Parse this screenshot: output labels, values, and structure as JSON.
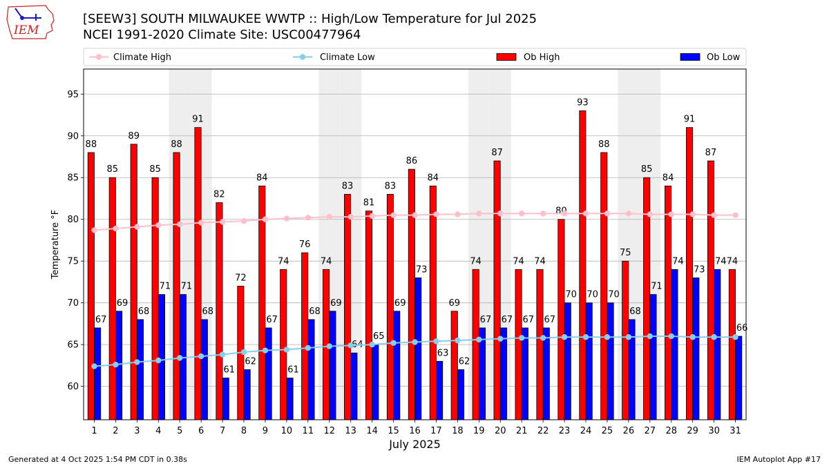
{
  "header": {
    "title_line1": "[SEEW3] SOUTH MILWAUKEE WWTP :: High/Low Temperature for Jul 2025",
    "title_line2": "NCEI 1991-2020 Climate Site: USC00477964",
    "logo_text": "IEM"
  },
  "footer": {
    "generated": "Generated at 4 Oct 2025 1:54 PM CDT in 0.38s",
    "app": "IEM Autoplot App #17"
  },
  "colors": {
    "ob_high": "#ff0000",
    "ob_low": "#0000ff",
    "climate_high": "#ffc0cb",
    "climate_low": "#87ceeb",
    "weekend_shade": "#eeeeee",
    "grid": "#b0b0b0",
    "logo": "#cc2222"
  },
  "chart_data": {
    "type": "bar",
    "title": "[SEEW3] SOUTH MILWAUKEE WWTP :: High/Low Temperature for Jul 2025",
    "xlabel": "July 2025",
    "ylabel": "Temperature °F",
    "ylim": [
      56,
      98
    ],
    "yticks": [
      60,
      65,
      70,
      75,
      80,
      85,
      90,
      95
    ],
    "grid": "horizontal",
    "legend_position": "top",
    "categories": [
      "1",
      "2",
      "3",
      "4",
      "5",
      "6",
      "7",
      "8",
      "9",
      "10",
      "11",
      "12",
      "13",
      "14",
      "15",
      "16",
      "17",
      "18",
      "19",
      "20",
      "21",
      "22",
      "23",
      "24",
      "25",
      "26",
      "27",
      "28",
      "29",
      "30",
      "31"
    ],
    "weekend_days": [
      5,
      6,
      12,
      13,
      19,
      20,
      26,
      27
    ],
    "series": [
      {
        "name": "Ob High",
        "kind": "bar",
        "values": [
          88,
          85,
          89,
          85,
          88,
          91,
          82,
          72,
          84,
          74,
          76,
          74,
          83,
          81,
          83,
          86,
          84,
          69,
          74,
          87,
          74,
          74,
          80,
          93,
          88,
          75,
          85,
          84,
          91,
          87,
          74
        ]
      },
      {
        "name": "Ob Low",
        "kind": "bar",
        "values": [
          67,
          69,
          68,
          71,
          71,
          68,
          61,
          62,
          67,
          61,
          68,
          69,
          64,
          65,
          69,
          73,
          63,
          62,
          67,
          67,
          67,
          67,
          70,
          70,
          70,
          68,
          71,
          74,
          73,
          74,
          66
        ]
      },
      {
        "name": "Climate High",
        "kind": "line",
        "values": [
          78.7,
          78.9,
          79.1,
          79.3,
          79.4,
          79.6,
          79.7,
          79.8,
          80.0,
          80.1,
          80.2,
          80.3,
          80.3,
          80.4,
          80.5,
          80.5,
          80.6,
          80.6,
          80.7,
          80.7,
          80.7,
          80.7,
          80.7,
          80.7,
          80.7,
          80.7,
          80.6,
          80.6,
          80.6,
          80.5,
          80.5
        ]
      },
      {
        "name": "Climate Low",
        "kind": "line",
        "values": [
          62.4,
          62.6,
          62.9,
          63.1,
          63.4,
          63.6,
          63.8,
          64.1,
          64.3,
          64.4,
          64.6,
          64.8,
          64.9,
          65.0,
          65.2,
          65.3,
          65.4,
          65.5,
          65.6,
          65.7,
          65.8,
          65.8,
          65.9,
          65.9,
          65.9,
          65.9,
          66.0,
          66.0,
          65.9,
          65.9,
          65.9
        ]
      }
    ],
    "legend": [
      "Climate High",
      "Climate Low",
      "Ob High",
      "Ob Low"
    ]
  }
}
